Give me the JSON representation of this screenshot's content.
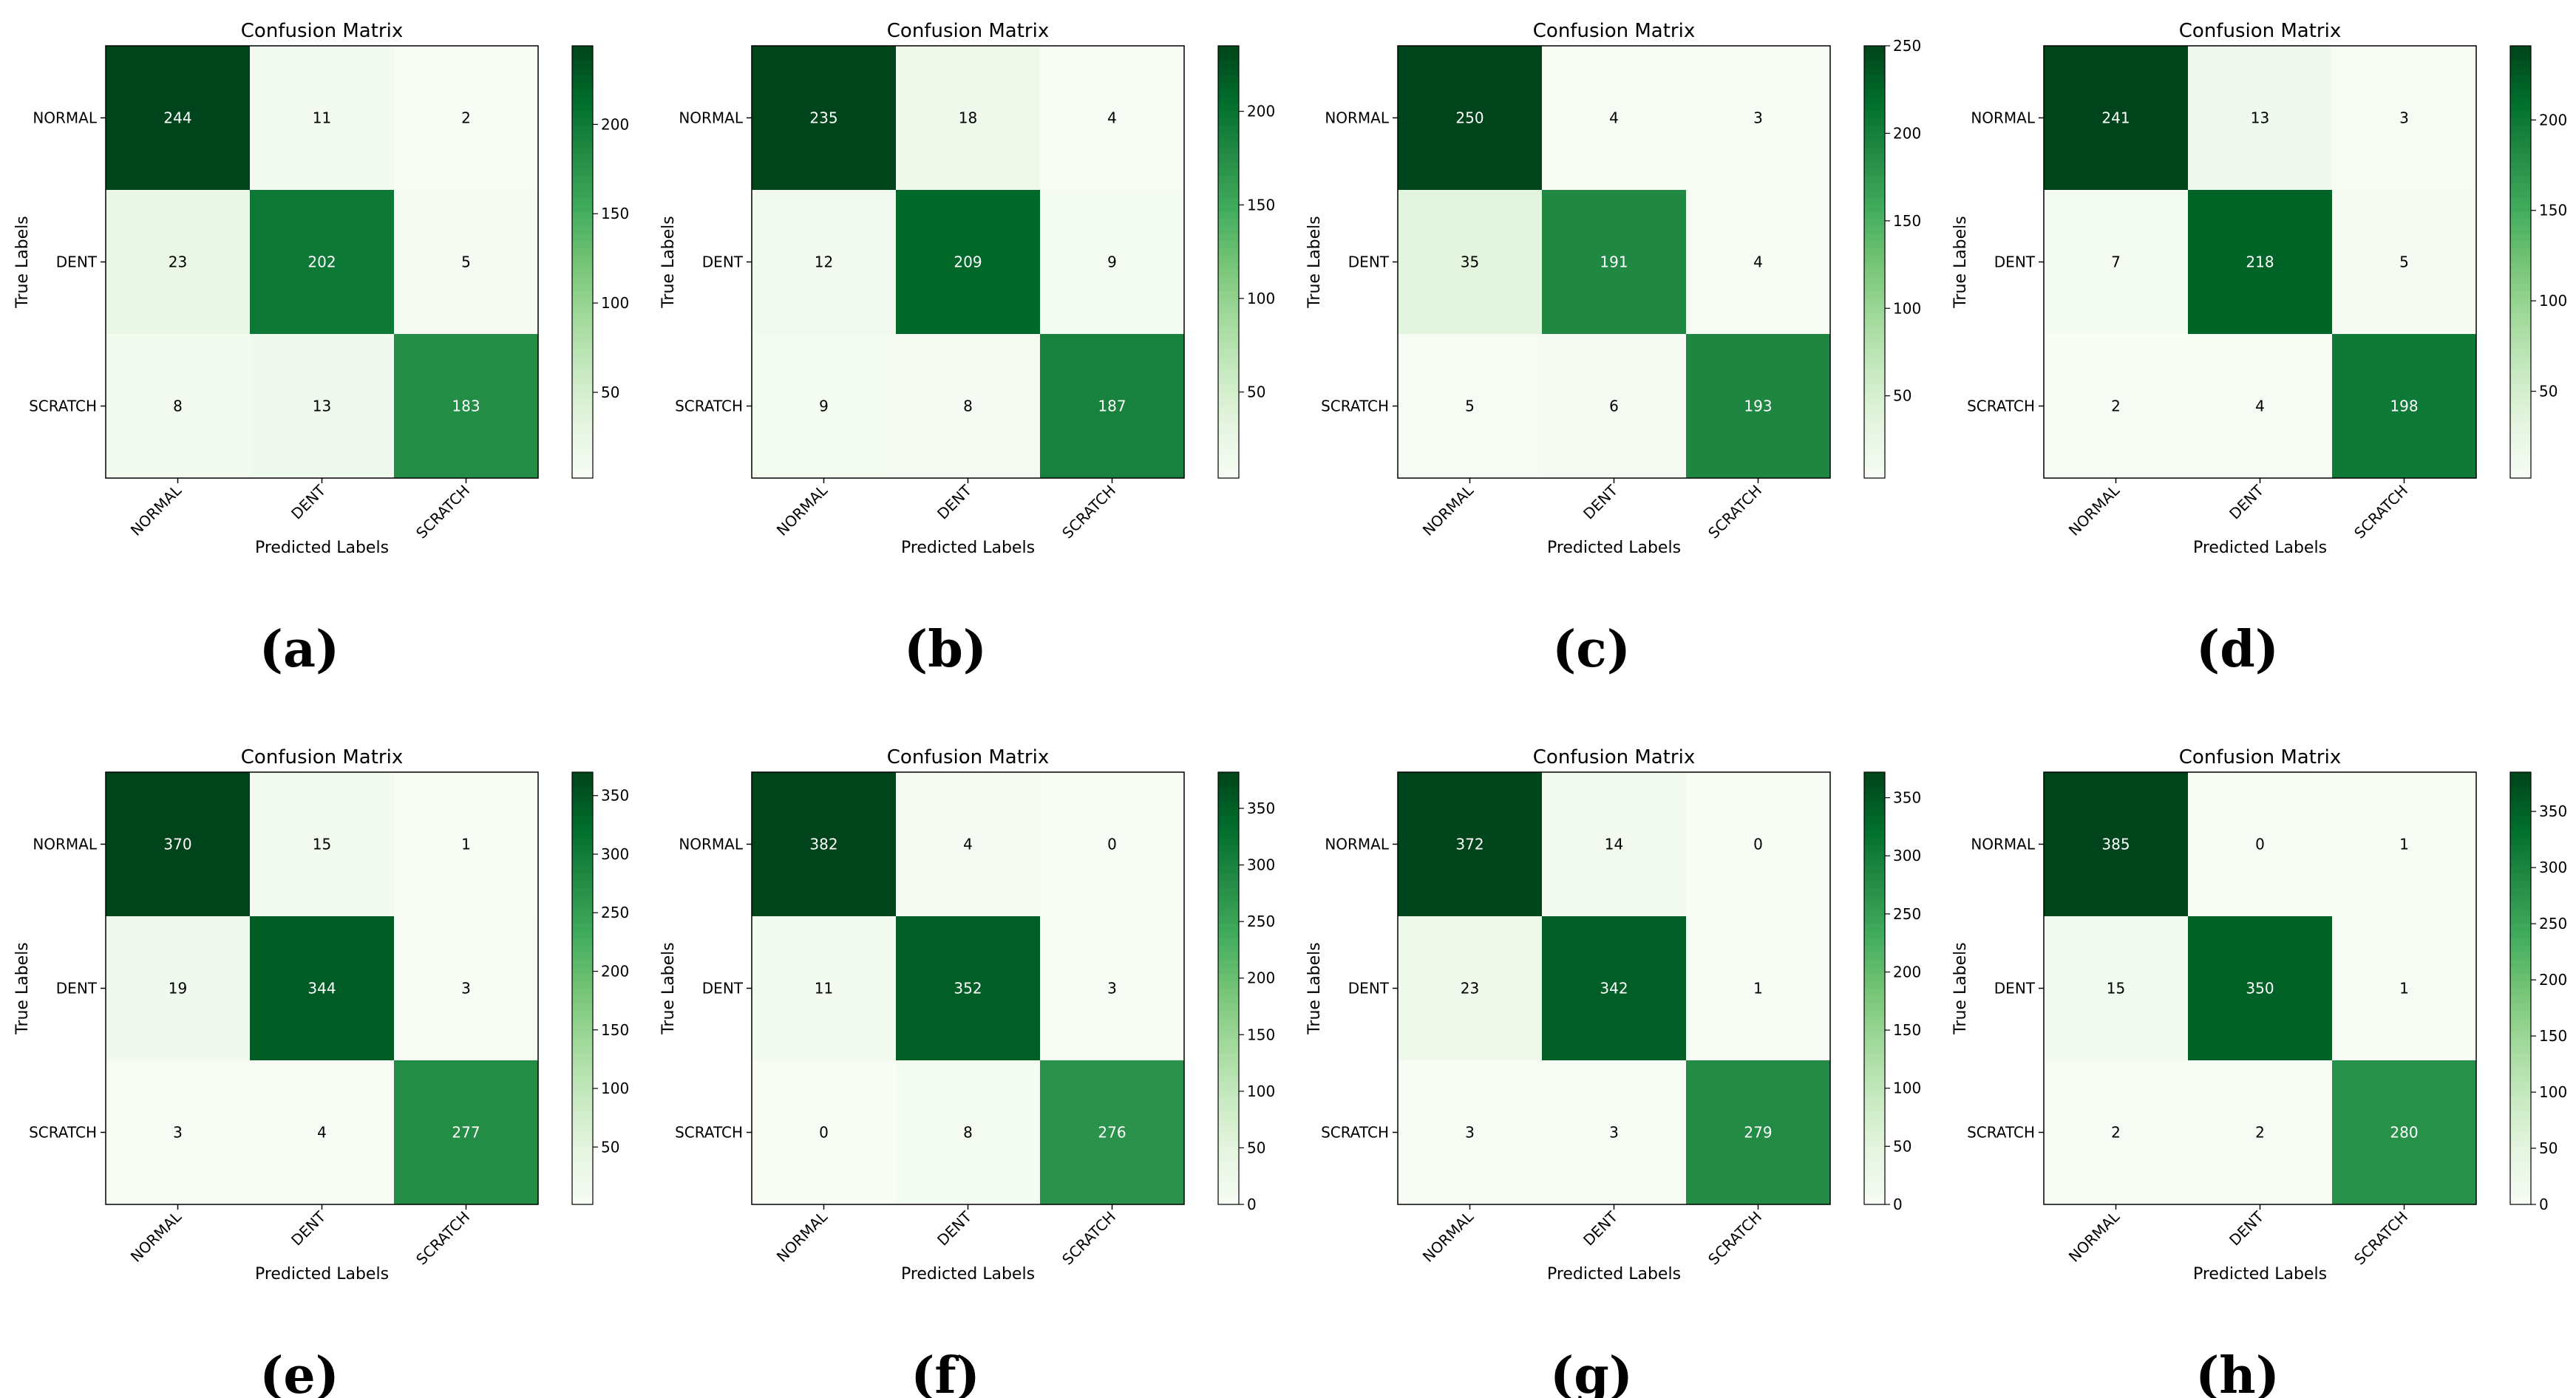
{
  "figure": {
    "background": "#ffffff",
    "colormap": "Greens",
    "colormap_stops": [
      "#f7fcf5",
      "#e5f5e0",
      "#c7e9c0",
      "#a1d99b",
      "#74c476",
      "#41ab5d",
      "#238b45",
      "#006d2c",
      "#00441b"
    ]
  },
  "chart_data": [
    {
      "type": "heatmap",
      "panel_label": "(a)",
      "title": "Confusion Matrix",
      "xlabel": "Predicted Labels",
      "ylabel": "True Labels",
      "x_categories": [
        "NORMAL",
        "DENT",
        "SCRATCH"
      ],
      "y_categories": [
        "NORMAL",
        "DENT",
        "SCRATCH"
      ],
      "matrix": [
        [
          244,
          11,
          2
        ],
        [
          23,
          202,
          5
        ],
        [
          8,
          13,
          183
        ]
      ],
      "colorbar": {
        "min": 2,
        "max": 244,
        "ticks": [
          50,
          100,
          150,
          200
        ]
      }
    },
    {
      "type": "heatmap",
      "panel_label": "(b)",
      "title": "Confusion Matrix",
      "xlabel": "Predicted Labels",
      "ylabel": "True Labels",
      "x_categories": [
        "NORMAL",
        "DENT",
        "SCRATCH"
      ],
      "y_categories": [
        "NORMAL",
        "DENT",
        "SCRATCH"
      ],
      "matrix": [
        [
          235,
          18,
          4
        ],
        [
          12,
          209,
          9
        ],
        [
          9,
          8,
          187
        ]
      ],
      "colorbar": {
        "min": 4,
        "max": 235,
        "ticks": [
          50,
          100,
          150,
          200
        ]
      }
    },
    {
      "type": "heatmap",
      "panel_label": "(c)",
      "title": "Confusion Matrix",
      "xlabel": "Predicted Labels",
      "ylabel": "True Labels",
      "x_categories": [
        "NORMAL",
        "DENT",
        "SCRATCH"
      ],
      "y_categories": [
        "NORMAL",
        "DENT",
        "SCRATCH"
      ],
      "matrix": [
        [
          250,
          4,
          3
        ],
        [
          35,
          191,
          4
        ],
        [
          5,
          6,
          193
        ]
      ],
      "colorbar": {
        "min": 3,
        "max": 250,
        "ticks": [
          50,
          100,
          150,
          200,
          250
        ]
      }
    },
    {
      "type": "heatmap",
      "panel_label": "(d)",
      "title": "Confusion Matrix",
      "xlabel": "Predicted Labels",
      "ylabel": "True Labels",
      "x_categories": [
        "NORMAL",
        "DENT",
        "SCRATCH"
      ],
      "y_categories": [
        "NORMAL",
        "DENT",
        "SCRATCH"
      ],
      "matrix": [
        [
          241,
          13,
          3
        ],
        [
          7,
          218,
          5
        ],
        [
          2,
          4,
          198
        ]
      ],
      "colorbar": {
        "min": 2,
        "max": 241,
        "ticks": [
          50,
          100,
          150,
          200
        ]
      }
    },
    {
      "type": "heatmap",
      "panel_label": "(e)",
      "title": "Confusion Matrix",
      "xlabel": "Predicted Labels",
      "ylabel": "True Labels",
      "x_categories": [
        "NORMAL",
        "DENT",
        "SCRATCH"
      ],
      "y_categories": [
        "NORMAL",
        "DENT",
        "SCRATCH"
      ],
      "matrix": [
        [
          370,
          15,
          1
        ],
        [
          19,
          344,
          3
        ],
        [
          3,
          4,
          277
        ]
      ],
      "colorbar": {
        "min": 1,
        "max": 370,
        "ticks": [
          50,
          100,
          150,
          200,
          250,
          300,
          350
        ]
      }
    },
    {
      "type": "heatmap",
      "panel_label": "(f)",
      "title": "Confusion Matrix",
      "xlabel": "Predicted Labels",
      "ylabel": "True Labels",
      "x_categories": [
        "NORMAL",
        "DENT",
        "SCRATCH"
      ],
      "y_categories": [
        "NORMAL",
        "DENT",
        "SCRATCH"
      ],
      "matrix": [
        [
          382,
          4,
          0
        ],
        [
          11,
          352,
          3
        ],
        [
          0,
          8,
          276
        ]
      ],
      "colorbar": {
        "min": 0,
        "max": 382,
        "ticks": [
          0,
          50,
          100,
          150,
          200,
          250,
          300,
          350
        ]
      }
    },
    {
      "type": "heatmap",
      "panel_label": "(g)",
      "title": "Confusion Matrix",
      "xlabel": "Predicted Labels",
      "ylabel": "True Labels",
      "x_categories": [
        "NORMAL",
        "DENT",
        "SCRATCH"
      ],
      "y_categories": [
        "NORMAL",
        "DENT",
        "SCRATCH"
      ],
      "matrix": [
        [
          372,
          14,
          0
        ],
        [
          23,
          342,
          1
        ],
        [
          3,
          3,
          279
        ]
      ],
      "colorbar": {
        "min": 0,
        "max": 372,
        "ticks": [
          0,
          50,
          100,
          150,
          200,
          250,
          300,
          350
        ]
      }
    },
    {
      "type": "heatmap",
      "panel_label": "(h)",
      "title": "Confusion Matrix",
      "xlabel": "Predicted Labels",
      "ylabel": "True Labels",
      "x_categories": [
        "NORMAL",
        "DENT",
        "SCRATCH"
      ],
      "y_categories": [
        "NORMAL",
        "DENT",
        "SCRATCH"
      ],
      "matrix": [
        [
          385,
          0,
          1
        ],
        [
          15,
          350,
          1
        ],
        [
          2,
          2,
          280
        ]
      ],
      "colorbar": {
        "min": 0,
        "max": 385,
        "ticks": [
          0,
          50,
          100,
          150,
          200,
          250,
          300,
          350
        ]
      }
    }
  ]
}
